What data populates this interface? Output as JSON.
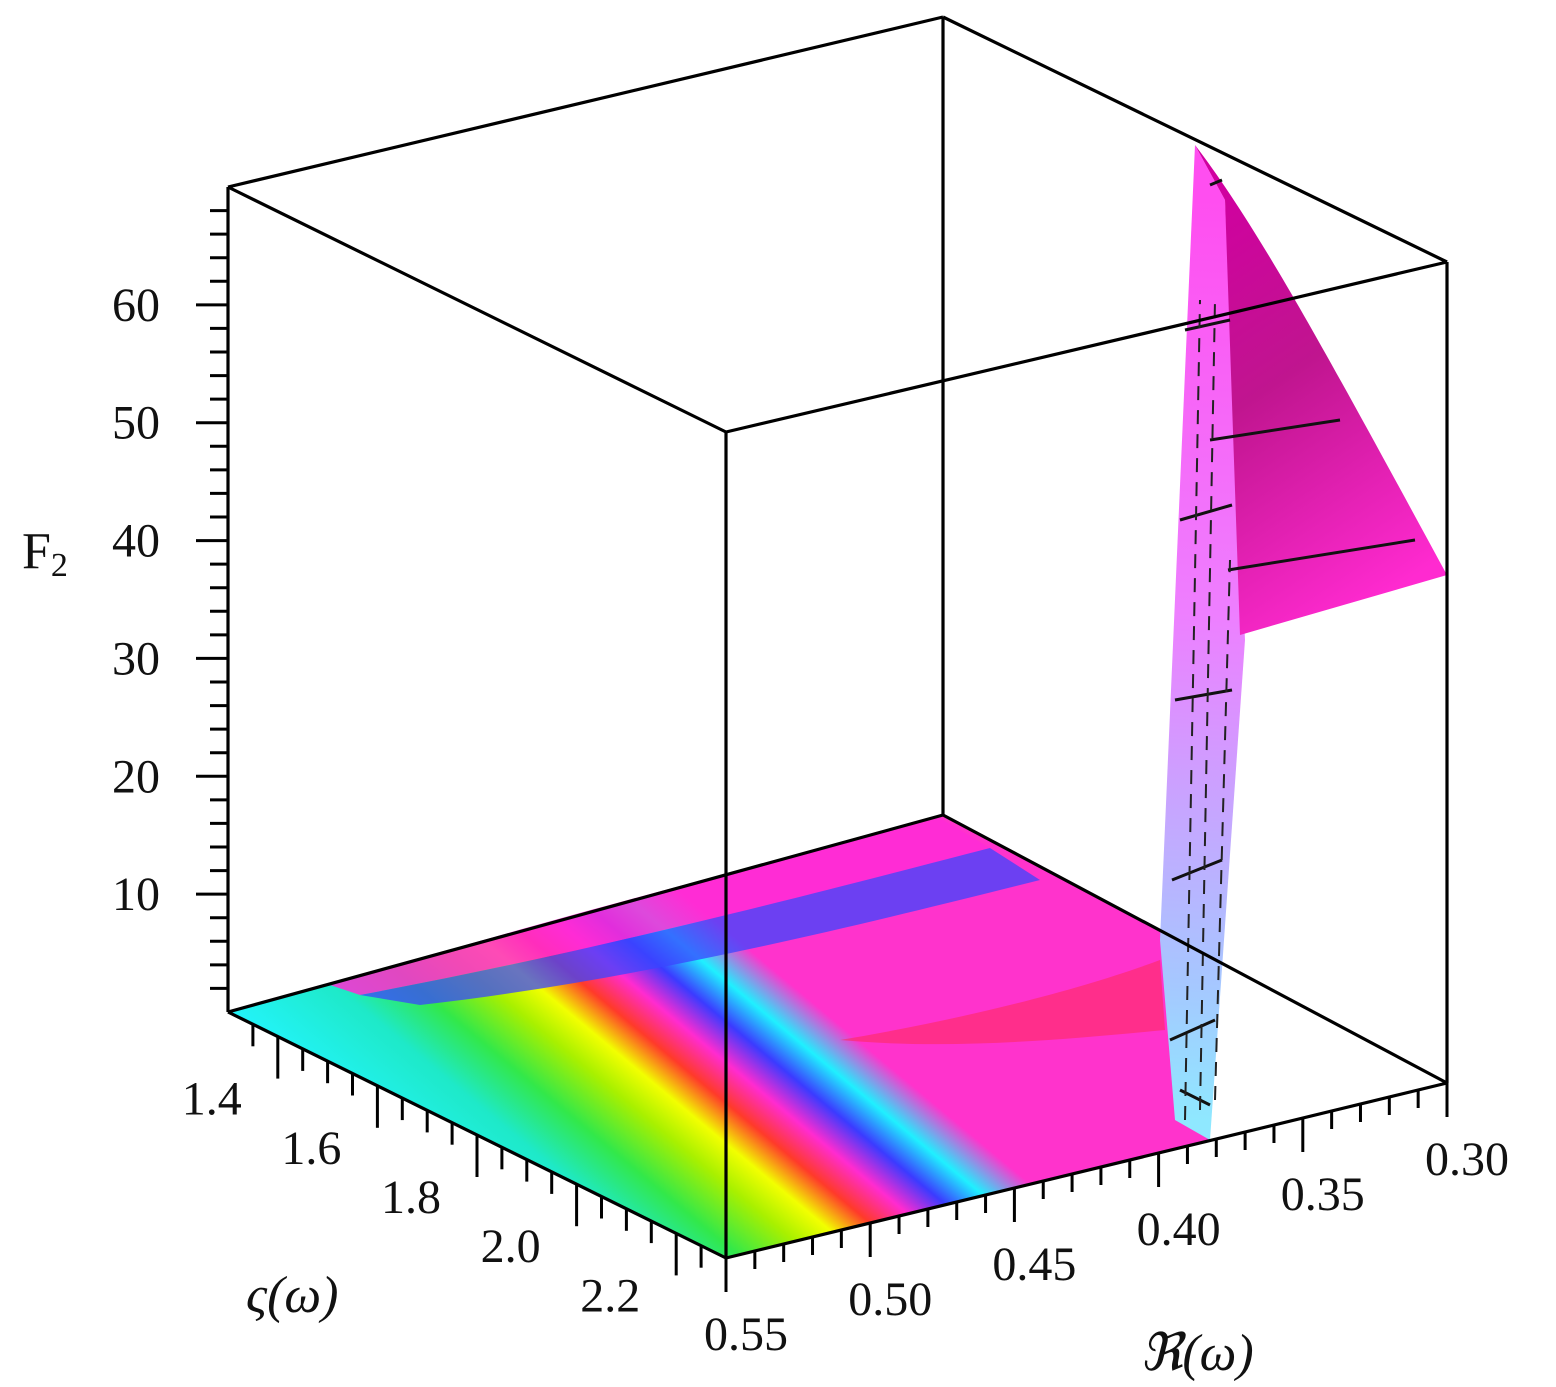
{
  "chart_data": {
    "type": "surface3d",
    "title": "",
    "z_axis": {
      "label": "F",
      "label_subscript": "2",
      "range": [
        0,
        70
      ],
      "ticks": [
        10,
        20,
        30,
        40,
        50,
        60
      ],
      "tick_labels": [
        "10",
        "20",
        "30",
        "40",
        "50",
        "60"
      ]
    },
    "x_axis": {
      "label": "ς(ω)",
      "range": [
        1.3,
        2.3
      ],
      "ticks": [
        1.4,
        1.6,
        1.8,
        2.0,
        2.2
      ],
      "tick_labels": [
        "1.4",
        "1.6",
        "1.8",
        "2.0",
        "2.2"
      ]
    },
    "y_axis": {
      "label": "ℜ(ω)",
      "range": [
        0.3,
        0.55
      ],
      "ticks": [
        0.55,
        0.5,
        0.45,
        0.4,
        0.35,
        0.3
      ],
      "tick_labels": [
        "0.55",
        "0.50",
        "0.45",
        "0.40",
        "0.35",
        "0.30"
      ]
    },
    "surface": {
      "description_values": {
        "floor_level": 0,
        "peak_value": 65,
        "peak_near_y": 0.3,
        "spike_starts_near_y": 0.39
      },
      "colormap": [
        "#22f2ff",
        "#22e7a0",
        "#35f000",
        "#f4ff00",
        "#ff1a1a",
        "#ff33cc",
        "#3344ff",
        "#ff33cc"
      ]
    },
    "box": true,
    "grid": false,
    "legend": "none"
  }
}
